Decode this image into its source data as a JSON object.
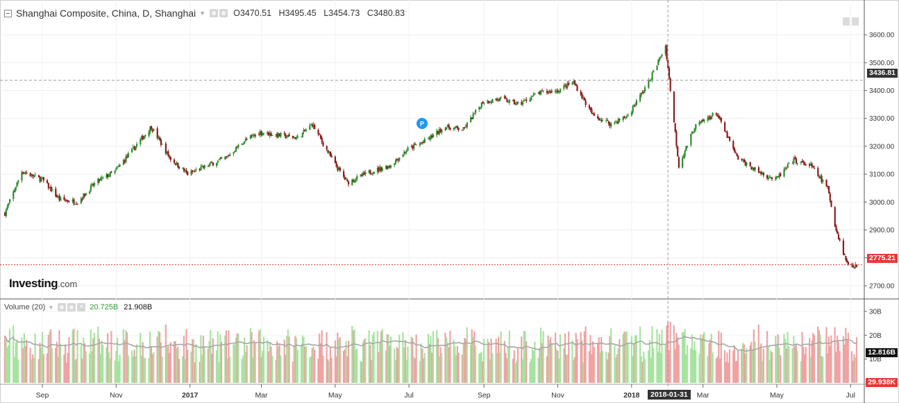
{
  "header": {
    "symbol": "Shanghai Composite, China, D, Shanghai",
    "open_key": "O",
    "open": "3470.51",
    "high_key": "H",
    "high": "3495.45",
    "low_key": "L",
    "low": "3454.73",
    "close_key": "C",
    "close": "3480.83"
  },
  "volume_header": {
    "label": "Volume (20)",
    "value_green": "20.725B",
    "value_black": "21.908B"
  },
  "logo": {
    "brand": "Investing",
    "suffix": ".com"
  },
  "price_tags": {
    "crosshair": "3436.81",
    "last": "2775.21"
  },
  "volume_tags": {
    "ma": "12.816B",
    "bottom": "29.938K"
  },
  "date_tag": "2018-01-31",
  "colors": {
    "up": "#2e8b2e",
    "down": "#8b1a1a",
    "vol_up": "#a7e3a0",
    "vol_down": "#efa3a3",
    "last_line": "#e53935",
    "ma_line": "#a7a7a7"
  },
  "chart_data": {
    "type": "candlestick",
    "title": "Shanghai Composite, China, D, Shanghai",
    "ylim": [
      2660,
      3650
    ],
    "y_ticks": [
      "2700.00",
      "2800.00",
      "2900.00",
      "3000.00",
      "3100.00",
      "3200.00",
      "3300.00",
      "3400.00",
      "3500.00",
      "3600.00"
    ],
    "x_ticks": [
      "Sep",
      "Nov",
      "2017",
      "Mar",
      "May",
      "Jul",
      "Sep",
      "Nov",
      "2018",
      "Mar",
      "May",
      "Jul"
    ],
    "x_tick_dates": [
      "2016-09",
      "2016-11",
      "2017-01",
      "2017-03",
      "2017-05",
      "2017-07",
      "2017-09",
      "2017-11",
      "2018-01",
      "2018-03",
      "2018-05",
      "2018-07"
    ],
    "range_start": "2016-08-01",
    "range_end": "2018-07-06",
    "closes": [
      [
        "2016-08-01",
        2960
      ],
      [
        "2016-08-15",
        3110
      ],
      [
        "2016-09-01",
        3080
      ],
      [
        "2016-09-15",
        3010
      ],
      [
        "2016-09-30",
        3000
      ],
      [
        "2016-10-15",
        3070
      ],
      [
        "2016-10-31",
        3110
      ],
      [
        "2016-11-15",
        3190
      ],
      [
        "2016-11-30",
        3270
      ],
      [
        "2016-12-15",
        3160
      ],
      [
        "2016-12-30",
        3100
      ],
      [
        "2017-01-15",
        3130
      ],
      [
        "2017-01-31",
        3160
      ],
      [
        "2017-02-15",
        3220
      ],
      [
        "2017-02-28",
        3250
      ],
      [
        "2017-03-15",
        3240
      ],
      [
        "2017-03-31",
        3230
      ],
      [
        "2017-04-12",
        3280
      ],
      [
        "2017-04-30",
        3140
      ],
      [
        "2017-05-11",
        3070
      ],
      [
        "2017-05-31",
        3110
      ],
      [
        "2017-06-15",
        3130
      ],
      [
        "2017-06-30",
        3190
      ],
      [
        "2017-07-15",
        3220
      ],
      [
        "2017-07-31",
        3270
      ],
      [
        "2017-08-15",
        3260
      ],
      [
        "2017-08-31",
        3360
      ],
      [
        "2017-09-15",
        3370
      ],
      [
        "2017-09-30",
        3350
      ],
      [
        "2017-10-15",
        3390
      ],
      [
        "2017-11-01",
        3400
      ],
      [
        "2017-11-14",
        3430
      ],
      [
        "2017-11-30",
        3310
      ],
      [
        "2017-12-15",
        3280
      ],
      [
        "2017-12-29",
        3310
      ],
      [
        "2018-01-15",
        3430
      ],
      [
        "2018-01-29",
        3560
      ],
      [
        "2018-02-09",
        3130
      ],
      [
        "2018-02-22",
        3270
      ],
      [
        "2018-03-12",
        3320
      ],
      [
        "2018-03-29",
        3160
      ],
      [
        "2018-04-15",
        3110
      ],
      [
        "2018-04-30",
        3080
      ],
      [
        "2018-05-15",
        3150
      ],
      [
        "2018-05-29",
        3130
      ],
      [
        "2018-06-12",
        3050
      ],
      [
        "2018-06-19",
        2900
      ],
      [
        "2018-06-28",
        2780
      ],
      [
        "2018-07-06",
        2770
      ]
    ],
    "volume": {
      "series_name": "Volume (20)",
      "ylim": [
        0,
        32
      ],
      "y_ticks": [
        "10B",
        "20B",
        "30B"
      ],
      "unit": "B"
    }
  }
}
